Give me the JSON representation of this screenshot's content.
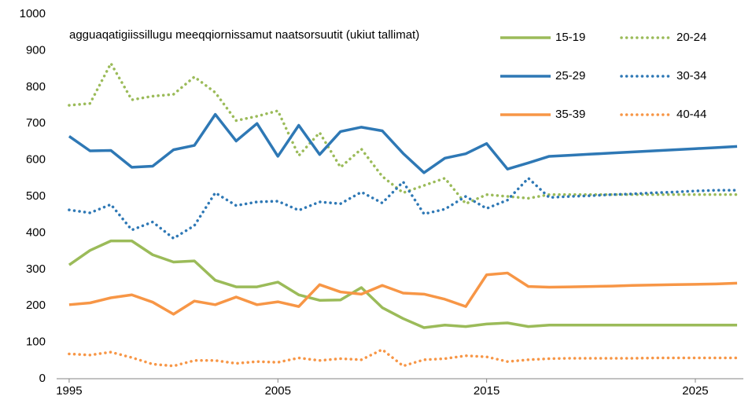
{
  "chart_data": {
    "type": "line",
    "title": "agguaqatigiissillugu meeqqiornissamut naatsorsuutit (ukiut tallimat)",
    "x": [
      1995,
      1996,
      1997,
      1998,
      1999,
      2000,
      2001,
      2002,
      2003,
      2004,
      2005,
      2006,
      2007,
      2008,
      2009,
      2010,
      2011,
      2012,
      2013,
      2014,
      2015,
      2016,
      2017,
      2018,
      2019,
      2020,
      2021,
      2022,
      2023,
      2024,
      2025,
      2026,
      2027
    ],
    "xlim": [
      1994.4,
      2027.3
    ],
    "xticks": [
      1995,
      2005,
      2015,
      2025
    ],
    "ylim": [
      0,
      1000
    ],
    "yticks": [
      0,
      100,
      200,
      300,
      400,
      500,
      600,
      700,
      800,
      900,
      1000
    ],
    "grid": false,
    "legend": "top-right",
    "series": [
      {
        "name": "15-19",
        "color": "#9bbb59",
        "style": "solid",
        "values": [
          312,
          352,
          378,
          378,
          340,
          320,
          323,
          270,
          252,
          252,
          265,
          230,
          215,
          216,
          250,
          195,
          165,
          140,
          147,
          143,
          150,
          153,
          143,
          147,
          147,
          147,
          147,
          147,
          147,
          147,
          147,
          147,
          147
        ]
      },
      {
        "name": "20-24",
        "color": "#9bbb59",
        "style": "dotted",
        "values": [
          750,
          755,
          865,
          765,
          775,
          780,
          828,
          785,
          708,
          720,
          735,
          612,
          675,
          580,
          630,
          555,
          510,
          530,
          550,
          480,
          505,
          500,
          495,
          505,
          505,
          505,
          505,
          505,
          505,
          505,
          505,
          505,
          505
        ]
      },
      {
        "name": "25-29",
        "color": "#2e78b5",
        "style": "solid",
        "values": [
          665,
          625,
          626,
          580,
          583,
          628,
          640,
          725,
          652,
          700,
          610,
          695,
          615,
          678,
          690,
          680,
          618,
          565,
          605,
          617,
          645,
          575,
          592,
          610,
          613,
          616,
          619,
          622,
          625,
          628,
          631,
          634,
          637
        ]
      },
      {
        "name": "30-34",
        "color": "#2e78b5",
        "style": "dotted",
        "values": [
          463,
          455,
          478,
          408,
          430,
          385,
          420,
          510,
          475,
          485,
          487,
          462,
          485,
          480,
          512,
          482,
          540,
          452,
          465,
          500,
          467,
          490,
          550,
          497,
          500,
          502,
          505,
          507,
          510,
          512,
          515,
          517,
          517
        ]
      },
      {
        "name": "35-39",
        "color": "#f79646",
        "style": "solid",
        "values": [
          203,
          208,
          222,
          230,
          210,
          177,
          213,
          203,
          224,
          203,
          211,
          198,
          258,
          238,
          232,
          256,
          235,
          232,
          218,
          198,
          285,
          290,
          253,
          251,
          252,
          253,
          254,
          256,
          257,
          258,
          259,
          260,
          262
        ]
      },
      {
        "name": "40-44",
        "color": "#f79646",
        "style": "dotted",
        "values": [
          68,
          65,
          73,
          58,
          40,
          35,
          50,
          50,
          42,
          47,
          45,
          57,
          50,
          55,
          52,
          80,
          35,
          52,
          55,
          63,
          60,
          47,
          52,
          55,
          56,
          56,
          56,
          56,
          57,
          57,
          57,
          57,
          57
        ]
      }
    ]
  }
}
